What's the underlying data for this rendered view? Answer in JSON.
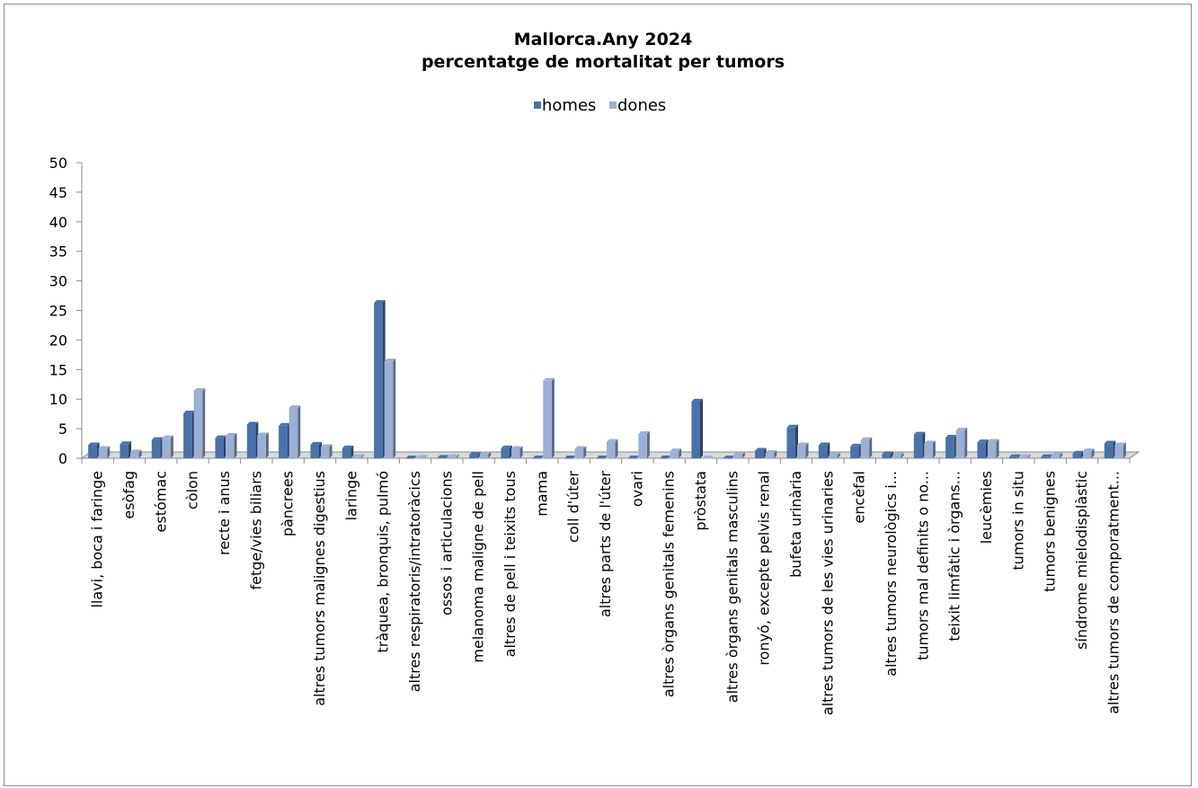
{
  "chart_data": {
    "type": "bar",
    "title": "Mallorca.Any 2024",
    "subtitle": "percentatge de mortalitat per tumors",
    "xlabel": "",
    "ylabel": "",
    "ylim": [
      0,
      50
    ],
    "yticks": [
      "0",
      "5",
      "10",
      "15",
      "20",
      "25",
      "30",
      "35",
      "40",
      "45",
      "50"
    ],
    "grid": false,
    "legend_position": "top-center",
    "categories": [
      "llavi, boca i faringe",
      "esòfag",
      "estómac",
      "còlon",
      "recte i anus",
      "fetge/vies biliars",
      "pàncrees",
      "altres tumors malignes digestius",
      "laringe",
      "tràquea, bronquis, pulmó",
      "altres respiratoris/intratoràcics",
      "ossos i articulacions",
      "melanoma maligne de pell",
      "altres de pell i teixits tous",
      "mama",
      "coll d'úter",
      "altres parts de l'úter",
      "ovari",
      "altres òrgans genitals femenins",
      "pròstata",
      "altres òrgans genitals masculins",
      "ronyó, excepte pelvis renal",
      "bufeta urinària",
      "altres tumors de les vies urinaries",
      "encèfal",
      "altres tumors neurològics i...",
      "tumors mal definits o no...",
      "teixit limfàtic i òrgans...",
      "leucèmies",
      "tumors in situ",
      "tumors benignes",
      "síndrome mielodisplàstic",
      "altres tumors de comporatment..."
    ],
    "series": [
      {
        "name": "homes",
        "color": "#4a72a8",
        "values": [
          2.2,
          2.4,
          3.1,
          7.6,
          3.4,
          5.7,
          5.5,
          2.3,
          1.7,
          26.3,
          0.0,
          0.1,
          0.6,
          1.7,
          0.0,
          0.0,
          0.0,
          0.0,
          0.0,
          9.6,
          0.0,
          1.3,
          5.2,
          2.2,
          2.0,
          0.7,
          4.0,
          3.5,
          2.7,
          0.2,
          0.2,
          0.8,
          2.5
        ]
      },
      {
        "name": "dones",
        "color": "#9bb0d6",
        "values": [
          1.6,
          1.0,
          3.4,
          11.4,
          3.8,
          3.9,
          8.5,
          1.9,
          0.2,
          16.4,
          0.1,
          0.2,
          0.7,
          1.6,
          13.1,
          1.6,
          2.8,
          4.1,
          1.2,
          0.0,
          0.6,
          0.9,
          2.2,
          0.5,
          3.1,
          0.5,
          2.5,
          4.7,
          2.8,
          0.2,
          0.5,
          1.2,
          2.2
        ]
      }
    ]
  }
}
